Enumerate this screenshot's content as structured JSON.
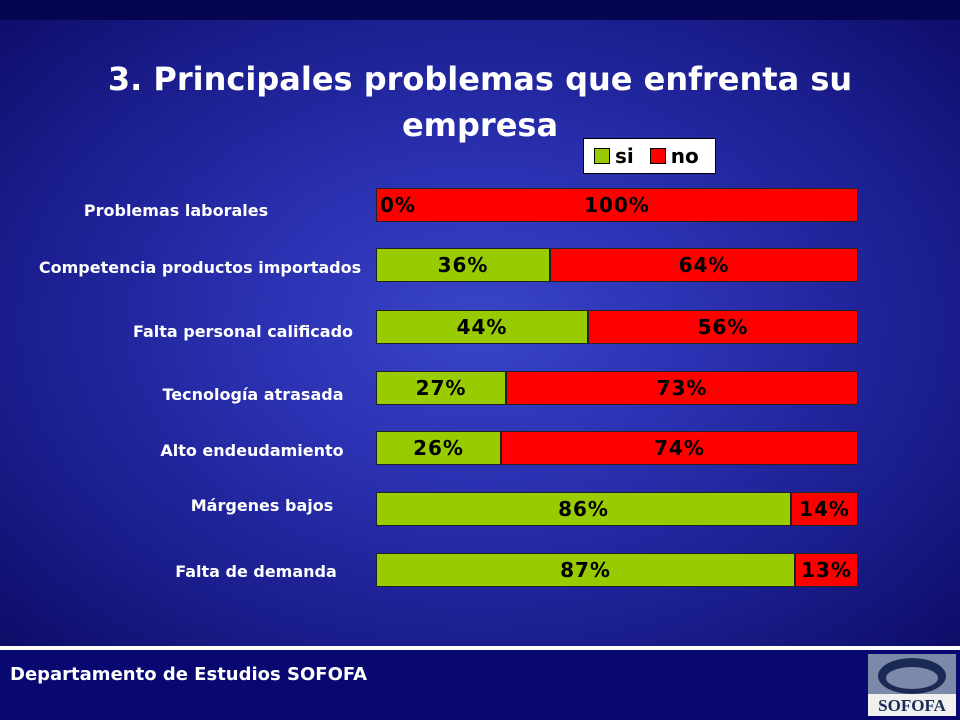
{
  "title": "3. Principales problemas que enfrenta su empresa",
  "footer": "Departamento de Estudios SOFOFA",
  "logo_text": "SOFOFA",
  "colors": {
    "si": "#99cc00",
    "no": "#ff0000"
  },
  "chart_data": {
    "type": "bar",
    "orientation": "horizontal-stacked-100",
    "categories": [
      "Problemas laborales",
      "Competencia productos importados",
      "Falta personal calificado",
      "Tecnología atrasada",
      "Alto endeudamiento",
      "Márgenes bajos",
      "Falta de demanda"
    ],
    "series": [
      {
        "name": "si",
        "values": [
          0,
          36,
          44,
          27,
          26,
          86,
          87
        ],
        "color": "#99cc00"
      },
      {
        "name": "no",
        "values": [
          100,
          64,
          56,
          73,
          74,
          14,
          13
        ],
        "color": "#ff0000"
      }
    ],
    "value_labels": {
      "si": [
        "0%",
        "36%",
        "44%",
        "27%",
        "26%",
        "86%",
        "87%"
      ],
      "no": [
        "100%",
        "64%",
        "56%",
        "73%",
        "74%",
        "14%",
        "13%"
      ]
    },
    "legend": {
      "position": "top-right",
      "entries": [
        "si",
        "no"
      ]
    },
    "xlim": [
      0,
      100
    ],
    "grid": false
  }
}
